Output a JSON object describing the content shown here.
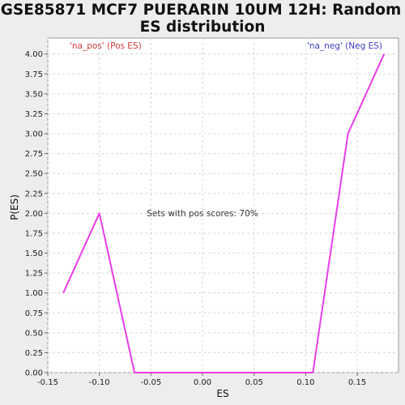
{
  "chart_data": {
    "type": "line",
    "title_lines": [
      "GSE85871 MCF7 PUERARIN 10UM 12H: Random",
      "ES distribution"
    ],
    "xlabel": "ES",
    "ylabel": "P(ES)",
    "xlim": [
      -0.15,
      0.19
    ],
    "ylim": [
      0,
      4.2
    ],
    "xticks": [
      -0.15,
      -0.1,
      -0.05,
      0.0,
      0.05,
      0.1,
      0.15
    ],
    "xtick_labels": [
      "-0.15",
      "-0.10",
      "-0.05",
      "0.00",
      "0.05",
      "0.10",
      "0.15"
    ],
    "yticks": [
      0,
      0.25,
      0.5,
      0.75,
      1.0,
      1.25,
      1.5,
      1.75,
      2.0,
      2.25,
      2.5,
      2.75,
      3.0,
      3.25,
      3.5,
      3.75,
      4.0
    ],
    "ytick_labels": [
      "0.00",
      "0.25",
      "0.50",
      "0.75",
      "1.00",
      "1.25",
      "1.50",
      "1.75",
      "2.00",
      "2.25",
      "2.50",
      "2.75",
      "3.00",
      "3.25",
      "3.50",
      "3.75",
      "4.00"
    ],
    "grid": true,
    "series": [
      {
        "color": "#e83ee8",
        "x": [
          -0.135,
          -0.1,
          -0.066,
          0.107,
          0.141,
          0.176
        ],
        "y": [
          1.0,
          2.0,
          0.0,
          0.0,
          3.0,
          4.0
        ]
      }
    ],
    "annotations": {
      "pos": "'na_pos' (Pos ES)",
      "neg": "'na_neg' (Neg ES)",
      "center": "Sets with pos scores: 70%"
    },
    "colors": {
      "pos": "#d23c3c",
      "neg": "#3c3cc8",
      "center": "#333333",
      "background": "#ffffff",
      "grid": "#d8d8d8"
    }
  }
}
